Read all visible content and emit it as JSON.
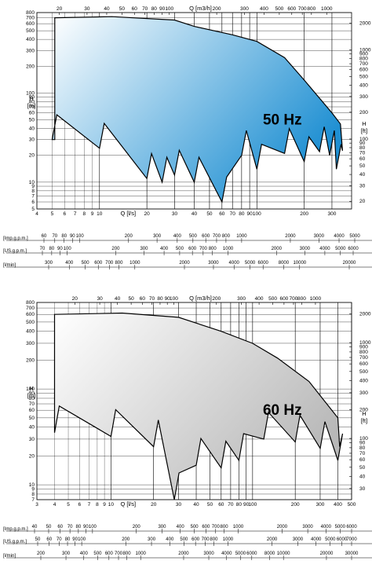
{
  "chart_data": [
    {
      "type": "area",
      "annotation": "50 Hz",
      "x_unit_top": "Q [m3/h]",
      "x_unit_bottom": "Q [l/s]",
      "y_unit_left": "H\n[m]",
      "y_unit_right": "H\n[ft]",
      "fill": {
        "light": "#ffffff",
        "dark": "#1e8fd2"
      },
      "x_range_ls": [
        4,
        400
      ],
      "y_range_m": [
        5,
        800
      ],
      "x_ticks_ls": [
        4,
        5,
        6,
        7,
        8,
        9,
        10,
        20,
        30,
        40,
        50,
        60,
        70,
        80,
        90,
        100,
        200,
        300
      ],
      "x_ticks_m3h": [
        20,
        30,
        40,
        50,
        60,
        70,
        80,
        90,
        100,
        200,
        300,
        400,
        500,
        600,
        700,
        800,
        1000
      ],
      "y_ticks_m": [
        5,
        6,
        7,
        8,
        9,
        10,
        20,
        30,
        40,
        50,
        60,
        70,
        80,
        90,
        100,
        200,
        300,
        400,
        500,
        600,
        700,
        800
      ],
      "y_ticks_ft": [
        20,
        30,
        40,
        50,
        60,
        70,
        80,
        90,
        100,
        200,
        300,
        400,
        500,
        600,
        700,
        800,
        900,
        1000,
        2000
      ],
      "envelope_top": [
        [
          5.2,
          700
        ],
        [
          12,
          720
        ],
        [
          30,
          660
        ],
        [
          40,
          560
        ],
        [
          70,
          450
        ],
        [
          100,
          380
        ],
        [
          150,
          250
        ],
        [
          200,
          140
        ],
        [
          300,
          60
        ],
        [
          340,
          45
        ]
      ],
      "envelope_bottom_notches": [
        [
          5,
          30
        ],
        [
          10,
          24
        ],
        [
          20,
          11
        ],
        [
          25,
          10
        ],
        [
          30,
          12
        ],
        [
          40,
          10
        ],
        [
          60,
          6
        ],
        [
          80,
          20
        ],
        [
          100,
          14
        ],
        [
          150,
          21
        ],
        [
          200,
          17
        ],
        [
          250,
          22
        ],
        [
          290,
          20
        ],
        [
          320,
          14
        ]
      ],
      "scales": [
        {
          "label": "[Imp.g.p.m.]",
          "ticks": [
            60,
            70,
            80,
            90,
            100,
            200,
            300,
            400,
            500,
            600,
            700,
            800,
            1000,
            2000,
            3000,
            4000,
            5000
          ]
        },
        {
          "label": "[US.g.p.m.]",
          "ticks": [
            70,
            80,
            90,
            100,
            200,
            300,
            400,
            500,
            600,
            700,
            800,
            1000,
            2000,
            3000,
            4000,
            5000,
            6000
          ]
        },
        {
          "label": "[l/min]",
          "ticks": [
            300,
            400,
            500,
            600,
            700,
            800,
            1000,
            2000,
            3000,
            4000,
            5000,
            6000,
            8000,
            10000,
            20000
          ]
        }
      ]
    },
    {
      "type": "area",
      "annotation": "60 Hz",
      "x_unit_top": "Q [m3/h]",
      "x_unit_bottom": "Q [l/s]",
      "y_unit_left": "H\n[m]",
      "y_unit_right": "H\n[ft]",
      "fill": {
        "light": "#ffffff",
        "dark": "#b8b8b8"
      },
      "x_range_ls": [
        3,
        500
      ],
      "y_range_m": [
        7,
        800
      ],
      "x_ticks_ls": [
        3,
        4,
        5,
        6,
        7,
        8,
        9,
        10,
        20,
        30,
        40,
        50,
        60,
        70,
        80,
        90,
        100,
        200,
        300,
        400,
        500
      ],
      "x_ticks_m3h": [
        20,
        30,
        40,
        50,
        60,
        70,
        80,
        90,
        100,
        200,
        300,
        400,
        500,
        600,
        700,
        800,
        1000
      ],
      "y_ticks_m": [
        7,
        8,
        9,
        10,
        20,
        30,
        40,
        50,
        60,
        70,
        80,
        90,
        100,
        200,
        300,
        400,
        500,
        600,
        700,
        800
      ],
      "y_ticks_ft": [
        7,
        8,
        9,
        10,
        20,
        30,
        40,
        50,
        60,
        70,
        80,
        90,
        100,
        200,
        300,
        400,
        500,
        600,
        700,
        800,
        900,
        1000,
        2000
      ],
      "envelope_top": [
        [
          4,
          600
        ],
        [
          12,
          620
        ],
        [
          30,
          560
        ],
        [
          60,
          400
        ],
        [
          100,
          300
        ],
        [
          150,
          210
        ],
        [
          250,
          120
        ],
        [
          400,
          50
        ]
      ],
      "envelope_bottom_notches": [
        [
          4,
          35
        ],
        [
          10,
          32
        ],
        [
          20,
          25
        ],
        [
          28,
          7
        ],
        [
          40,
          16
        ],
        [
          60,
          15
        ],
        [
          80,
          18
        ],
        [
          120,
          30
        ],
        [
          200,
          28
        ],
        [
          300,
          24
        ],
        [
          400,
          18
        ]
      ],
      "scales": [
        {
          "label": "[Imp.g.p.m.]",
          "ticks": [
            40,
            50,
            60,
            70,
            80,
            90,
            100,
            200,
            300,
            400,
            500,
            600,
            700,
            800,
            1000,
            2000,
            3000,
            4000,
            5000,
            6000
          ]
        },
        {
          "label": "[US.g.p.m.]",
          "ticks": [
            50,
            60,
            70,
            80,
            90,
            100,
            200,
            300,
            400,
            500,
            600,
            700,
            800,
            1000,
            2000,
            3000,
            4000,
            5000,
            6000,
            7000
          ]
        },
        {
          "label": "[l/min]",
          "ticks": [
            200,
            300,
            400,
            500,
            600,
            700,
            800,
            1000,
            2000,
            3000,
            4000,
            5000,
            6000,
            8000,
            10000,
            20000,
            30000
          ]
        }
      ]
    }
  ]
}
